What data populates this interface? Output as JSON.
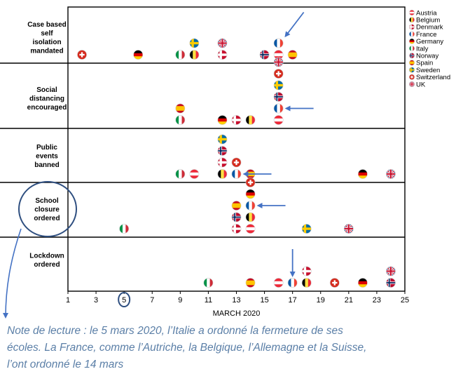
{
  "chart_data": {
    "type": "scatter",
    "xlabel": "MARCH 2020",
    "x_ticks": [
      1,
      3,
      5,
      7,
      9,
      11,
      13,
      15,
      17,
      19,
      21,
      23,
      25
    ],
    "xlim": [
      1,
      25
    ],
    "highlighted_tick": 5,
    "rows": [
      {
        "label": [
          "Case based",
          "self",
          "isolation",
          "mandated"
        ],
        "events": [
          {
            "country": "Switzerland",
            "day": 2
          },
          {
            "country": "Germany",
            "day": 6
          },
          {
            "country": "Italy",
            "day": 9
          },
          {
            "country": "Belgium",
            "day": 10
          },
          {
            "country": "Sweden",
            "day": 10
          },
          {
            "country": "Denmark",
            "day": 12
          },
          {
            "country": "UK",
            "day": 12
          },
          {
            "country": "Norway",
            "day": 15
          },
          {
            "country": "Austria",
            "day": 16
          },
          {
            "country": "France",
            "day": 16
          },
          {
            "country": "Spain",
            "day": 17
          }
        ]
      },
      {
        "label": [
          "Social",
          "distancing",
          "encouraged"
        ],
        "events": [
          {
            "country": "Italy",
            "day": 9
          },
          {
            "country": "Spain",
            "day": 9
          },
          {
            "country": "Germany",
            "day": 12
          },
          {
            "country": "Denmark",
            "day": 13
          },
          {
            "country": "Belgium",
            "day": 14
          },
          {
            "country": "Austria",
            "day": 16
          },
          {
            "country": "France",
            "day": 16
          },
          {
            "country": "Norway",
            "day": 16
          },
          {
            "country": "Sweden",
            "day": 16
          },
          {
            "country": "Switzerland",
            "day": 16
          },
          {
            "country": "UK",
            "day": 16
          }
        ]
      },
      {
        "label": [
          "Public",
          "events",
          "banned"
        ],
        "events": [
          {
            "country": "Italy",
            "day": 9
          },
          {
            "country": "Austria",
            "day": 10
          },
          {
            "country": "Belgium",
            "day": 12
          },
          {
            "country": "Denmark",
            "day": 12
          },
          {
            "country": "Norway",
            "day": 12
          },
          {
            "country": "Sweden",
            "day": 12
          },
          {
            "country": "France",
            "day": 13
          },
          {
            "country": "Switzerland",
            "day": 13
          },
          {
            "country": "Spain",
            "day": 14
          },
          {
            "country": "Germany",
            "day": 22
          },
          {
            "country": "UK",
            "day": 24
          }
        ]
      },
      {
        "label": [
          "School",
          "closure",
          "ordered"
        ],
        "events": [
          {
            "country": "Italy",
            "day": 5
          },
          {
            "country": "Denmark",
            "day": 13
          },
          {
            "country": "Norway",
            "day": 13
          },
          {
            "country": "Spain",
            "day": 13
          },
          {
            "country": "Austria",
            "day": 14
          },
          {
            "country": "Belgium",
            "day": 14
          },
          {
            "country": "France",
            "day": 14
          },
          {
            "country": "Germany",
            "day": 14
          },
          {
            "country": "Switzerland",
            "day": 14
          },
          {
            "country": "Sweden",
            "day": 18
          },
          {
            "country": "UK",
            "day": 21
          }
        ]
      },
      {
        "label": [
          "Lockdown",
          "ordered"
        ],
        "events": [
          {
            "country": "Italy",
            "day": 11
          },
          {
            "country": "Spain",
            "day": 14
          },
          {
            "country": "Austria",
            "day": 16
          },
          {
            "country": "France",
            "day": 17
          },
          {
            "country": "Belgium",
            "day": 18
          },
          {
            "country": "Denmark",
            "day": 18
          },
          {
            "country": "Switzerland",
            "day": 20
          },
          {
            "country": "Germany",
            "day": 22
          },
          {
            "country": "Norway",
            "day": 24
          },
          {
            "country": "UK",
            "day": 24
          }
        ]
      }
    ],
    "legend": [
      "Austria",
      "Belgium",
      "Denmark",
      "France",
      "Germany",
      "Italy",
      "Norway",
      "Spain",
      "Sweden",
      "Switzerland",
      "UK"
    ],
    "arrows": [
      {
        "row": 0,
        "day": 16
      },
      {
        "row": 1,
        "day": 16
      },
      {
        "row": 2,
        "day": 13
      },
      {
        "row": 3,
        "day": 14
      },
      {
        "row": 4,
        "day": 17
      }
    ],
    "colors": {
      "arrow": "#4472c4",
      "highlight": "#2f4f80",
      "frame": "#000000"
    }
  },
  "caption": {
    "lines": [
      "Note de lecture : le 5 mars 2020, l’Italie a ordonné la fermeture de ses",
      "écoles. La France, comme l’Autriche, la Belgique, l’Allemagne et la Suisse,",
      "l’ont ordonné le 14 mars"
    ],
    "color": "#5b7fa7"
  }
}
